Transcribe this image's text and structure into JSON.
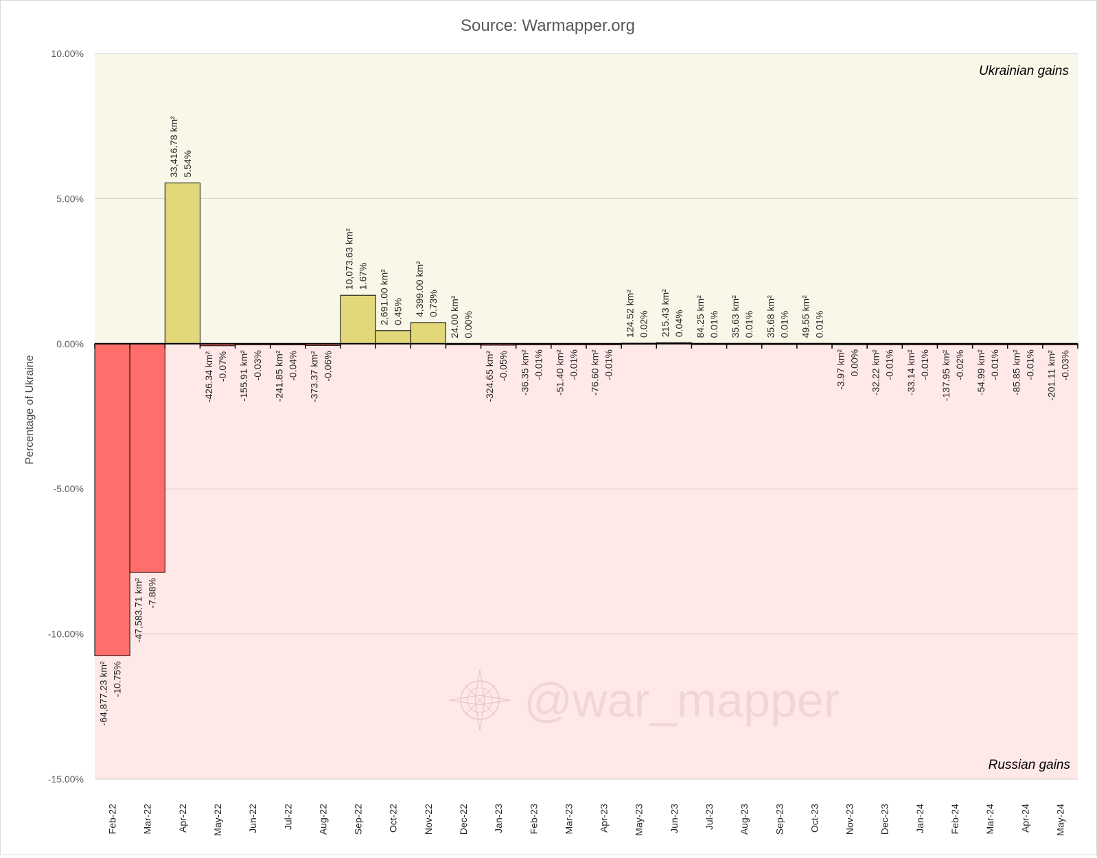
{
  "chart_data": {
    "type": "bar",
    "title": "Source: Warmapper.org",
    "xlabel": "",
    "ylabel": "Percentage of Ukraine",
    "ylim": [
      -15,
      10
    ],
    "yticks": [
      10,
      5,
      0,
      -5,
      -10,
      -15
    ],
    "ytick_labels": [
      "10.00%",
      "5.00%",
      "0.00%",
      "-5.00%",
      "-10.00%",
      "-15.00%"
    ],
    "grid": true,
    "zones": {
      "positive_label": "Ukrainian gains",
      "negative_label": "Russian gains",
      "positive_color": "#f9f7e8",
      "negative_color": "#ffe8e8"
    },
    "colors": {
      "positive_bar": "#e3d879",
      "negative_bar": "#ff6e6a",
      "bar_outline": "#000000"
    },
    "watermark": "@war_mapper",
    "categories": [
      "Feb-22",
      "Mar-22",
      "Apr-22",
      "May-22",
      "Jun-22",
      "Jul-22",
      "Aug-22",
      "Sep-22",
      "Oct-22",
      "Nov-22",
      "Dec-22",
      "Jan-23",
      "Feb-23",
      "Mar-23",
      "Apr-23",
      "May-23",
      "Jun-23",
      "Jul-23",
      "Aug-23",
      "Sep-23",
      "Oct-23",
      "Nov-23",
      "Dec-23",
      "Jan-24",
      "Feb-24",
      "Mar-24",
      "Apr-24",
      "May-24"
    ],
    "values": [
      -10.75,
      -7.88,
      5.54,
      -0.07,
      -0.03,
      -0.04,
      -0.06,
      1.67,
      0.45,
      0.73,
      0.0,
      -0.05,
      -0.01,
      -0.01,
      -0.01,
      0.02,
      0.04,
      0.01,
      0.01,
      0.01,
      0.01,
      0.0,
      -0.01,
      -0.01,
      -0.02,
      -0.01,
      -0.01,
      -0.03
    ],
    "area_labels": [
      "-64,877.23 km²",
      "-47,583.71 km²",
      "33,416.78 km²",
      "-426.34 km²",
      "-155.91 km²",
      "-241.85 km²",
      "-373.37 km²",
      "10,073.63 km²",
      "2,691.00 km²",
      "4,399.00 km²",
      "24.00 km²",
      "-324.65 km²",
      "-36.35 km²",
      "-51.40 km²",
      "-76.60 km²",
      "124.52 km²",
      "215.43 km²",
      "84.25 km²",
      "35.63 km²",
      "35.68 km²",
      "49.55 km²",
      "-3.97 km²",
      "-32.22 km²",
      "-33.14 km²",
      "-137.95 km²",
      "-54.99 km²",
      "-85.85 km²",
      "-201.11 km²"
    ],
    "pct_labels": [
      "-10.75%",
      "-7.88%",
      "5.54%",
      "-0.07%",
      "-0.03%",
      "-0.04%",
      "-0.06%",
      "1.67%",
      "0.45%",
      "0.73%",
      "0.00%",
      "-0.05%",
      "-0.01%",
      "-0.01%",
      "-0.01%",
      "0.02%",
      "0.04%",
      "0.01%",
      "0.01%",
      "0.01%",
      "0.01%",
      "0.00%",
      "-0.01%",
      "-0.01%",
      "-0.02%",
      "-0.01%",
      "-0.01%",
      "-0.03%"
    ]
  }
}
